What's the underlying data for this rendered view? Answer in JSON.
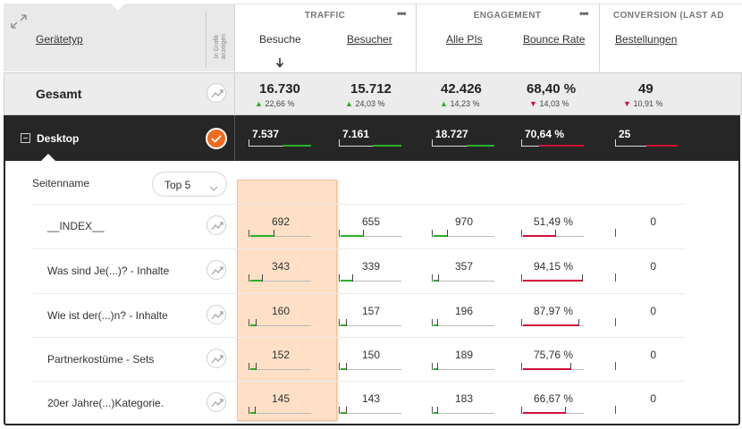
{
  "header": {
    "device_col": "Gerätetyp",
    "graph_col": "In Grafik anzeigen",
    "groups": [
      "TRAFFIC",
      "ENGAGEMENT",
      "CONVERSION (LAST AD"
    ],
    "more_icon": "ellipsis-icon",
    "columns": [
      "Besuche",
      "Besucher",
      "Alle PIs",
      "Bounce Rate",
      "Bestellungen"
    ],
    "sort_icon": "arrow-down-icon"
  },
  "total": {
    "label": "Gesamt",
    "values": [
      "16.730",
      "15.712",
      "42.426",
      "68,40 %",
      "49"
    ],
    "deltas": [
      "22,66 %",
      "24,03 %",
      "14,23 %",
      "14,03 %",
      "10,91 %"
    ],
    "delta_dirs": [
      "up",
      "up",
      "up",
      "down",
      "down"
    ]
  },
  "desktop": {
    "label": "Desktop",
    "values": [
      "7.537",
      "7.161",
      "18.727",
      "70,64 %",
      "25"
    ],
    "share": [
      0.45,
      0.45,
      0.44,
      0.72,
      0.5
    ]
  },
  "page_filter": {
    "label": "Seitenname",
    "select_value": "Top 5"
  },
  "rows": [
    {
      "label": "__INDEX__",
      "values": [
        "692",
        "655",
        "970",
        "51,49 %",
        "0"
      ],
      "share": [
        0.092,
        0.091,
        0.052,
        0.51,
        0
      ]
    },
    {
      "label": "Was sind Je(...)? - Inhalte",
      "values": [
        "343",
        "339",
        "357",
        "94,15 %",
        "0"
      ],
      "share": [
        0.046,
        0.047,
        0.019,
        0.94,
        0
      ]
    },
    {
      "label": "Wie ist der(...)n? - Inhalte",
      "values": [
        "160",
        "157",
        "196",
        "87,97 %",
        "0"
      ],
      "share": [
        0.021,
        0.022,
        0.01,
        0.88,
        0
      ]
    },
    {
      "label": "Partnerkostüme - Sets",
      "values": [
        "152",
        "150",
        "189",
        "75,76 %",
        "0"
      ],
      "share": [
        0.02,
        0.021,
        0.01,
        0.76,
        0
      ]
    },
    {
      "label": "20er Jahre(...)Kategorie.",
      "values": [
        "145",
        "143",
        "183",
        "66,67 %",
        "0"
      ],
      "share": [
        0.019,
        0.02,
        0.01,
        0.67,
        0
      ]
    }
  ],
  "colors": {
    "accent": "#f26b1d",
    "up": "#2bb02b",
    "down": "#d0103a",
    "highlight": "#fde0c5",
    "dark": "#262626"
  }
}
